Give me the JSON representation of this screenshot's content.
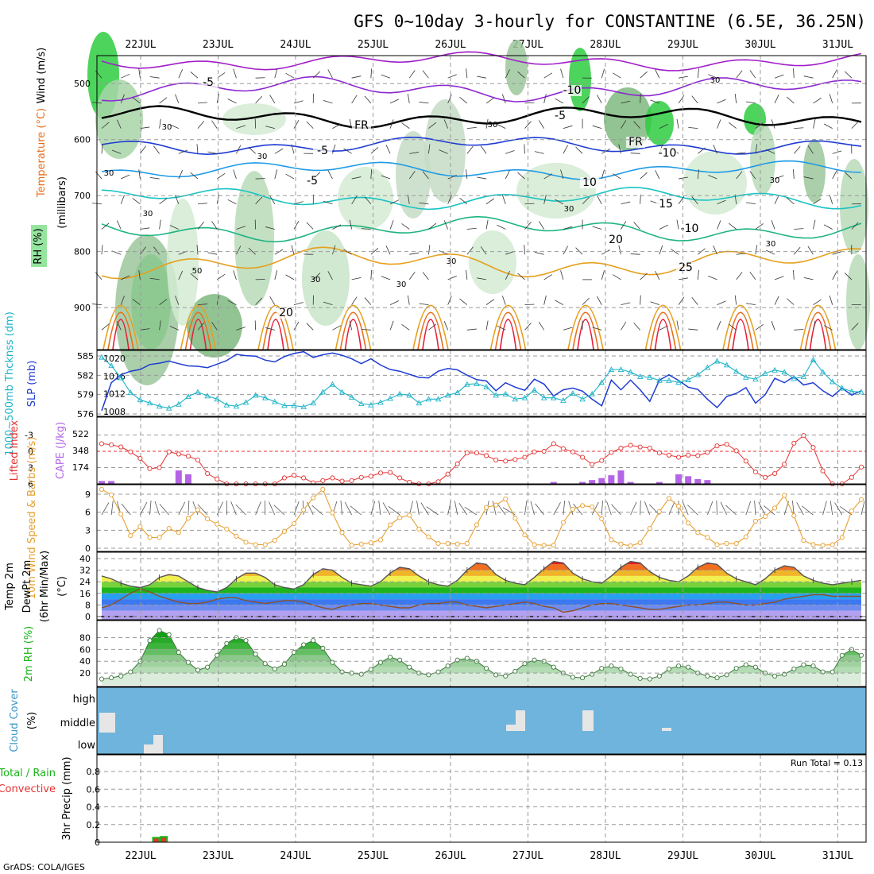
{
  "title": "GFS 0~10day 3-hourly for CONSTANTINE (6.5E, 36.25N)",
  "footer": "GrADS: COLA/IGES",
  "run_total_label": "Run Total = 0.13",
  "days": [
    "22JUL",
    "23JUL",
    "24JUL",
    "25JUL",
    "26JUL",
    "27JUL",
    "28JUL",
    "29JUL",
    "30JUL",
    "31JUL"
  ],
  "chart_data": [
    {
      "type": "heatmap",
      "panel": "upper-air",
      "ylabel": "(millibars)",
      "side_labels": [
        "Wind (m/s)",
        "Temperature (°C)",
        "RH (%)"
      ],
      "yticks": [
        500,
        600,
        700,
        800,
        900
      ],
      "ylim": [
        450,
        975
      ],
      "x": [
        "22JUL",
        "23JUL",
        "24JUL",
        "25JUL",
        "26JUL",
        "27JUL",
        "28JUL",
        "29JUL",
        "30JUL",
        "31JUL"
      ],
      "isotherm_labels": [
        "-5",
        "-10",
        "-5",
        "FR",
        "FR",
        "-5",
        "-10",
        "-5",
        "10",
        "-10",
        "15",
        "20",
        "25",
        "20"
      ],
      "rh_labels": [
        "30",
        "30",
        "30",
        "30",
        "50",
        "30",
        "30",
        "30",
        "30",
        "30",
        "30",
        "30",
        "30"
      ],
      "isotherm_colors": {
        "-10": "#a01ec8",
        "-5": "#8c28d2",
        "0": "#000000",
        "5": "#1e3cd2",
        "10": "#1e9be6",
        "15": "#19c3c3",
        "20": "#1eb482",
        "25": "#e6a01e",
        "30": "#e66e1e",
        "35": "#e61e3c"
      }
    },
    {
      "type": "line",
      "panel": "thickness-slp",
      "ylabel_left": "1000~500mb Thcknss (dm)",
      "ylabel_right": "SLP (mb)",
      "yticks_left": [
        "585",
        "582",
        "579",
        "576"
      ],
      "yticks_right": [
        "1020",
        "1016",
        "1012",
        "1008"
      ],
      "x": [
        0,
        1,
        2,
        3,
        4,
        5,
        6,
        7,
        8,
        9,
        10,
        11,
        12,
        13,
        14,
        15,
        16,
        17,
        18,
        19,
        20,
        21,
        22,
        23,
        24,
        25,
        26,
        27,
        28,
        29,
        30,
        31,
        32,
        33,
        34,
        35,
        36,
        37,
        38,
        39,
        40,
        41,
        42,
        43,
        44,
        45,
        46,
        47,
        48,
        49,
        50,
        51,
        52,
        53,
        54,
        55,
        56,
        57,
        58,
        59,
        60,
        61,
        62,
        63,
        64,
        65,
        66,
        67,
        68,
        69,
        70,
        71,
        72,
        73,
        74,
        75,
        76,
        77,
        78,
        79
      ],
      "series": [
        {
          "name": "SLP (mb)",
          "color": "#1e3cd2",
          "axis": "right",
          "values": [
            1008.2,
            1014.5,
            1016.3,
            1017.1,
            1017.5,
            1018.6,
            1018.9,
            1019.4,
            1018.8,
            1018.3,
            1018.2,
            1017.9,
            1018.7,
            1019.5,
            1020.9,
            1020.6,
            1020.5,
            1019.6,
            1019.2,
            1020.4,
            1021.1,
            1021.5,
            1020.2,
            1020.8,
            1021.2,
            1020.7,
            1019.9,
            1018.8,
            1019.9,
            1018.5,
            1017.5,
            1017.1,
            1016.4,
            1015.7,
            1015.6,
            1017.1,
            1017.7,
            1017.4,
            1016.2,
            1015.2,
            1014.9,
            1012.7,
            1014.5,
            1013.5,
            1012.8,
            1015.3,
            1014.2,
            1011.5,
            1012.9,
            1013.3,
            1012.6,
            1010.8,
            1009.3,
            1015.1,
            1012.9,
            1015.1,
            1012.9,
            1010.3,
            1015.1,
            1016.3,
            1015.0,
            1013.5,
            1013.0,
            1010.8,
            1008.9,
            1011.4,
            1012.1,
            1013.4,
            1009.9,
            1011.8,
            1015.5,
            1014.5,
            1015.9,
            1014.0,
            1014.5,
            1012.7,
            1011.4,
            1013.3,
            1011.7,
            1012.7
          ]
        },
        {
          "name": "Thickness (dm)",
          "color": "#1eb4c8",
          "axis": "left",
          "values": [
            584.8,
            583.5,
            581.6,
            579.3,
            578.2,
            577.7,
            577.2,
            576.9,
            577.5,
            578.7,
            579.4,
            578.8,
            578.3,
            577.4,
            577.2,
            577.8,
            578.9,
            578.5,
            577.9,
            577.3,
            577.3,
            577.1,
            577.7,
            579.4,
            580.6,
            579.4,
            578.6,
            577.6,
            577.4,
            577.8,
            578.4,
            579.1,
            578.9,
            577.7,
            578.3,
            578.3,
            578.9,
            579.3,
            580.6,
            580.7,
            580.2,
            578.9,
            579.1,
            578.3,
            578.5,
            579.7,
            578.5,
            578.5,
            578.1,
            579.2,
            578.3,
            579.1,
            580.9,
            582.9,
            582.9,
            582.5,
            581.8,
            581.7,
            581.2,
            581.2,
            580.9,
            581.3,
            582.1,
            583.2,
            584.2,
            583.6,
            582.6,
            581.7,
            581.4,
            582.3,
            582.8,
            582.5,
            581.5,
            581.8,
            584.4,
            582.5,
            581.0,
            580.0,
            579.5,
            579.4
          ]
        }
      ]
    },
    {
      "type": "bar",
      "panel": "lifted-index-cape",
      "ylabel_left": "Lifted Index",
      "ylabel_right": "CAPE (J/kg)",
      "yticks_left": [
        "-3",
        "0",
        "3",
        "6"
      ],
      "yticks_right": [
        "522",
        "348",
        "174"
      ],
      "series": [
        {
          "name": "Lifted Index",
          "color": "#e63232",
          "values": [
            -1.4,
            -1.2,
            -0.8,
            0.1,
            1.3,
            3.2,
            3.0,
            0.1,
            0.5,
            0.9,
            1.6,
            4.1,
            5.1,
            6.3,
            6.4,
            6.0,
            6.1,
            6.1,
            6.0,
            4.9,
            4.4,
            4.9,
            5.8,
            5.4,
            4.9,
            5.5,
            5.4,
            4.8,
            4.6,
            4.0,
            3.9,
            4.9,
            5.7,
            6.4,
            6.5,
            5.6,
            4.2,
            2.3,
            0.3,
            0.3,
            0.8,
            1.6,
            1.8,
            1.5,
            1.1,
            0.1,
            0.0,
            -1.4,
            -0.5,
            0.1,
            1.1,
            2.4,
            1.7,
            0.2,
            -0.6,
            -1.1,
            -0.8,
            -0.6,
            0.3,
            0.7,
            1.1,
            0.7,
            0.8,
            0.2,
            -1.0,
            -1.3,
            -0.1,
            1.8,
            3.8,
            4.8,
            4.1,
            2.4,
            -1.5,
            -2.9,
            -0.7,
            3.6,
            6.3,
            6.4,
            4.8,
            2.9
          ]
        },
        {
          "name": "CAPE (J/kg)",
          "color": "#b464e6",
          "values": [
            30,
            30,
            0,
            0,
            0,
            0,
            0,
            0,
            140,
            100,
            0,
            0,
            0,
            0,
            0,
            0,
            0,
            0,
            0,
            0,
            0,
            0,
            0,
            0,
            0,
            0,
            0,
            0,
            0,
            0,
            0,
            0,
            0,
            0,
            0,
            0,
            0,
            0,
            0,
            0,
            0,
            0,
            0,
            0,
            0,
            0,
            0,
            20,
            0,
            0,
            20,
            40,
            60,
            90,
            140,
            20,
            0,
            0,
            20,
            0,
            100,
            80,
            50,
            40,
            0,
            0,
            0,
            0,
            0,
            0,
            0,
            0,
            0,
            0,
            0,
            0,
            0,
            0,
            0,
            0
          ]
        }
      ]
    },
    {
      "type": "line",
      "panel": "10m-wind",
      "ylabel": "10m Wind Speed & Barbs (m/s)",
      "yticks": [
        "9",
        "6",
        "3",
        "0"
      ],
      "series": [
        {
          "name": "10m Wind Speed",
          "color": "#e6a032",
          "values": [
            9.8,
            8.9,
            5.7,
            2.1,
            3.6,
            1.8,
            1.8,
            3.3,
            2.6,
            5.0,
            6.4,
            4.9,
            4.0,
            3.2,
            2.0,
            1.0,
            0.6,
            0.6,
            1.3,
            2.8,
            4.1,
            6.4,
            8.4,
            9.8,
            5.9,
            2.6,
            0.5,
            0.7,
            0.9,
            1.4,
            3.9,
            5.1,
            5.5,
            3.2,
            1.9,
            0.8,
            0.8,
            0.7,
            0.8,
            3.9,
            6.8,
            7.2,
            8.2,
            5.0,
            2.2,
            0.6,
            0.5,
            0.5,
            4.3,
            6.5,
            7.1,
            6.9,
            4.9,
            1.4,
            0.7,
            0.4,
            0.9,
            3.3,
            6.1,
            8.3,
            7.0,
            4.2,
            2.6,
            1.8,
            0.6,
            0.8,
            0.8,
            1.9,
            4.5,
            5.3,
            6.7,
            8.8,
            5.4,
            1.3,
            0.6,
            0.5,
            0.6,
            1.8,
            6.2,
            8.1
          ]
        }
      ]
    },
    {
      "type": "area",
      "panel": "2m-temp",
      "ylabel": "2m Temp 2m DewPt (6hr Min/Max) (°C)",
      "yticks": [
        "40",
        "32",
        "24",
        "16",
        "8",
        "0"
      ],
      "series": [
        {
          "name": "2m Temp",
          "color": "#555555",
          "values": [
            28,
            26,
            23,
            21,
            20,
            22,
            27,
            29,
            28,
            24,
            20,
            18,
            17,
            20,
            26,
            30,
            30,
            27,
            22,
            20,
            19,
            22,
            29,
            33,
            32,
            27,
            23,
            22,
            21,
            24,
            30,
            34,
            33,
            28,
            24,
            22,
            21,
            25,
            32,
            37,
            36,
            29,
            25,
            23,
            22,
            27,
            33,
            38,
            37,
            30,
            26,
            24,
            23,
            28,
            34,
            38,
            37,
            31,
            27,
            25,
            24,
            28,
            34,
            37,
            36,
            30,
            26,
            24,
            22,
            26,
            32,
            35,
            34,
            28,
            25,
            23,
            22,
            23,
            24,
            25
          ]
        },
        {
          "name": "2m DewPt",
          "color": "#8c5028",
          "values": [
            6,
            8,
            12,
            16,
            19,
            17,
            14,
            12,
            10,
            9,
            9,
            10,
            12,
            13,
            13,
            11,
            10,
            9,
            10,
            11,
            11,
            10,
            8,
            6,
            5,
            7,
            8,
            9,
            9,
            8,
            7,
            6,
            6,
            8,
            9,
            9,
            10,
            10,
            8,
            7,
            6,
            7,
            8,
            9,
            10,
            9,
            7,
            6,
            3,
            4,
            6,
            8,
            9,
            9,
            8,
            7,
            6,
            5,
            5,
            6,
            7,
            8,
            8,
            9,
            10,
            10,
            9,
            8,
            8,
            9,
            10,
            12,
            13,
            14,
            15,
            15,
            14,
            14,
            14,
            14
          ]
        }
      ]
    },
    {
      "type": "area",
      "panel": "2m-rh",
      "ylabel": "2m RH (%)",
      "yticks": [
        "80",
        "60",
        "40",
        "20"
      ],
      "series": [
        {
          "name": "2m RH",
          "color": "#19b419",
          "values": [
            10,
            12,
            15,
            22,
            40,
            75,
            92,
            85,
            55,
            38,
            25,
            30,
            50,
            70,
            80,
            75,
            52,
            36,
            27,
            35,
            55,
            68,
            75,
            62,
            38,
            22,
            20,
            18,
            26,
            38,
            47,
            42,
            30,
            20,
            17,
            22,
            32,
            42,
            45,
            40,
            28,
            17,
            15,
            23,
            36,
            42,
            40,
            30,
            20,
            13,
            12,
            18,
            28,
            32,
            27,
            18,
            11,
            10,
            15,
            27,
            32,
            30,
            20,
            15,
            12,
            17,
            28,
            34,
            30,
            20,
            15,
            18,
            27,
            34,
            32,
            22,
            22,
            50,
            60,
            50
          ]
        }
      ]
    },
    {
      "type": "heatmap",
      "panel": "cloud-cover",
      "ylabel": "Cloud Cover (%)",
      "yticks": [
        "high",
        "middle",
        "low"
      ],
      "background_color": "#6eb4dc",
      "patch_color": "#e6e6e6"
    },
    {
      "type": "bar",
      "panel": "precip",
      "ylabel": "3hr Precip (mm)",
      "side_labels": [
        "Total / Rain",
        "Convective"
      ],
      "yticks": [
        "0.8",
        "0.6",
        "0.4",
        "0.2",
        "0"
      ],
      "ylim": [
        0,
        0.98
      ],
      "bars": [
        {
          "x": 22.2,
          "total": 0.06,
          "convective": 0.04
        },
        {
          "x": 22.3,
          "total": 0.07,
          "convective": 0.05
        }
      ],
      "colors": {
        "total": "#19b419",
        "convective": "#e63232"
      }
    }
  ]
}
